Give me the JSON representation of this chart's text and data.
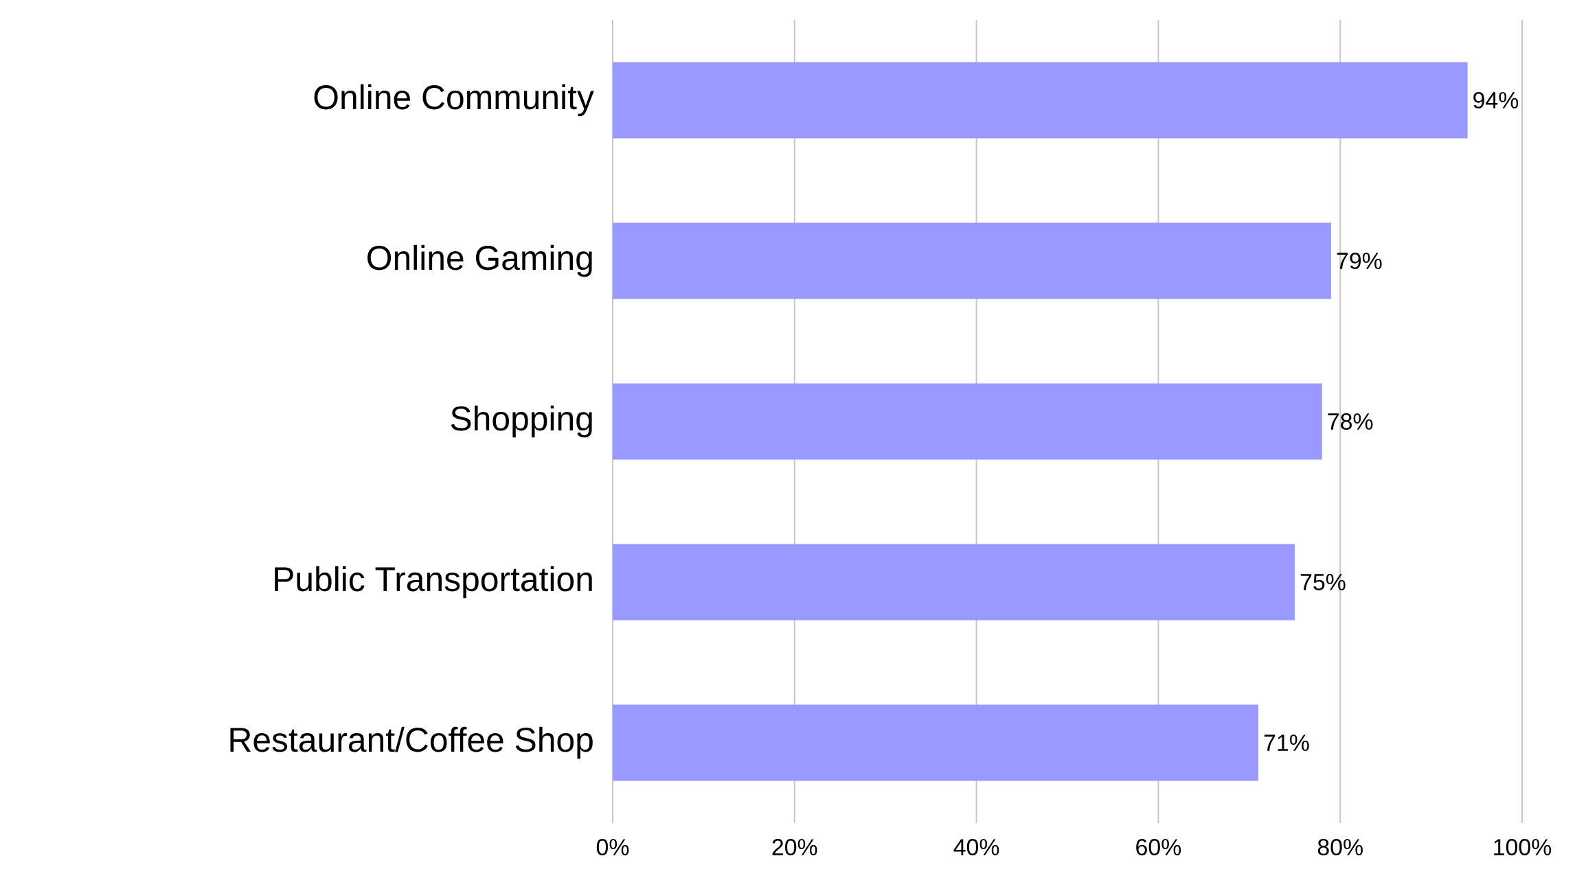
{
  "chart_data": {
    "type": "bar",
    "orientation": "horizontal",
    "categories": [
      "Online Community",
      "Online Gaming",
      "Shopping",
      "Public Transportation",
      "Restaurant/Coffee Shop"
    ],
    "values": [
      94,
      79,
      78,
      75,
      71
    ],
    "value_labels": [
      "94%",
      "79%",
      "78%",
      "75%",
      "71%"
    ],
    "color": "#9999ff",
    "xlim": [
      0,
      100
    ],
    "xticks": [
      {
        "value": 0,
        "label": "0%"
      },
      {
        "value": 20,
        "label": "20%"
      },
      {
        "value": 40,
        "label": "40%"
      },
      {
        "value": 60,
        "label": "60%"
      },
      {
        "value": 80,
        "label": "80%"
      },
      {
        "value": 100,
        "label": "100%"
      }
    ],
    "grid": "x"
  }
}
